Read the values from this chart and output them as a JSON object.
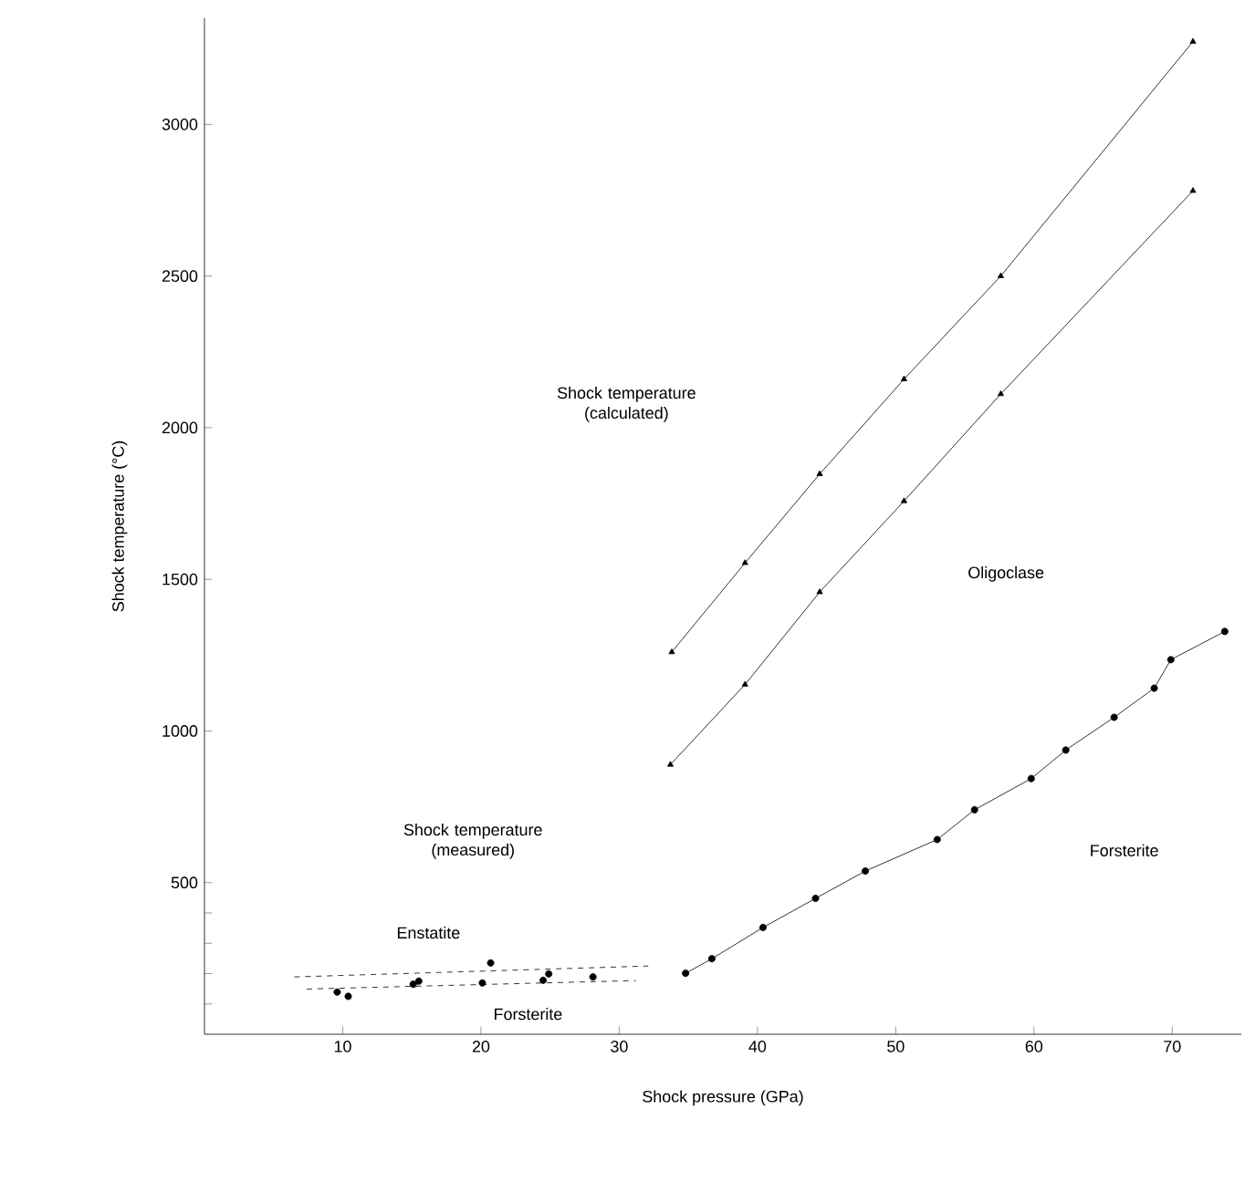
{
  "chart_data": {
    "type": "line",
    "xlabel": "Shock pressure (GPa)",
    "ylabel": "Shock temperature (°C)",
    "xlim": [
      0,
      75
    ],
    "ylim": [
      0,
      3350
    ],
    "xticks": [
      10,
      20,
      30,
      40,
      50,
      60,
      70
    ],
    "yticks": [
      {
        "value": 100,
        "label": null
      },
      {
        "value": 200,
        "label": null
      },
      {
        "value": 300,
        "label": null
      },
      {
        "value": 400,
        "label": null
      },
      500,
      1000,
      1500,
      2000,
      2500,
      3000
    ],
    "grid": false,
    "series": [
      {
        "color": "#000000",
        "marker": "triangle",
        "x": [
          33.8,
          39.1,
          44.5,
          50.6,
          57.6,
          71.5
        ],
        "values": [
          1260,
          1554,
          1847,
          2160,
          2500,
          3273
        ]
      },
      {
        "color": "#000000",
        "marker": "triangle",
        "x": [
          33.7,
          39.1,
          44.5,
          50.6,
          57.6,
          71.5
        ],
        "values": [
          889,
          1153,
          1458,
          1758,
          2111,
          2781
        ]
      },
      {
        "color": "#000000",
        "marker": "circle",
        "x": [
          34.8,
          36.7,
          40.4,
          44.2,
          47.8,
          53.0,
          55.7,
          59.8,
          62.3,
          65.8,
          68.7,
          69.9,
          73.8
        ],
        "values": [
          201,
          249,
          352,
          448,
          538,
          642,
          740,
          843,
          937,
          1045,
          1141,
          1235,
          1328
        ]
      },
      {
        "type": "scatter",
        "color": "#000000",
        "marker": "circle",
        "x": [
          9.6,
          10.4,
          15.5,
          20.7,
          24.9,
          28.1
        ],
        "values": [
          139,
          125,
          175,
          235,
          199,
          189
        ]
      },
      {
        "type": "scatter",
        "color": "#000000",
        "marker": "circle",
        "x": [
          15.1,
          20.1,
          24.5
        ],
        "values": [
          165,
          169,
          178
        ]
      },
      {
        "color": "#000000",
        "marker": "none",
        "line_style": "dashed",
        "x": [
          6.5,
          32.1
        ],
        "values": [
          189,
          225
        ]
      },
      {
        "color": "#000000",
        "marker": "none",
        "line_style": "dashed",
        "x": [
          7.4,
          31.2
        ],
        "values": [
          149,
          177
        ]
      }
    ],
    "annotations": [
      "Shock temperature (calculated)",
      "Oligoclase",
      "Forsterite",
      "Shock temperature (measured)",
      "Enstatite",
      "Forsterite"
    ]
  }
}
